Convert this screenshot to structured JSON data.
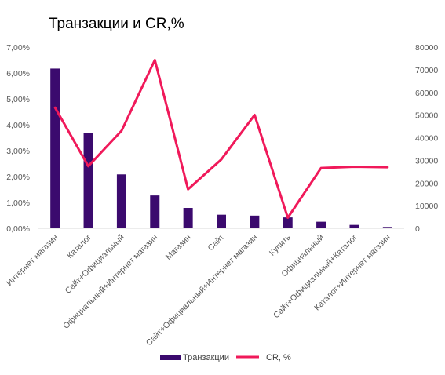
{
  "chart_data": {
    "type": "bar+line",
    "title": "Транзакции и CR,%",
    "categories": [
      "Интернет магазин",
      "Каталог",
      "Сайт+Официальный",
      "Официальный+Интернет магазин",
      "Магазин",
      "Сайт",
      "Сайт+Официальный+Интернет магазин",
      "Купить",
      "Официальный",
      "Сайт+Официальный+Каталог",
      "Каталог+Интернет магазин"
    ],
    "series": [
      {
        "name": "Транзакции",
        "type": "bar",
        "axis": "right",
        "color": "#3b0a6e",
        "values": [
          70500,
          42200,
          23800,
          14500,
          9000,
          6000,
          5600,
          4800,
          2900,
          1500,
          600
        ]
      },
      {
        "name": "CR, %",
        "type": "line",
        "axis": "left",
        "color": "#f0195a",
        "values": [
          0.0466,
          0.024,
          0.0377,
          0.065,
          0.0151,
          0.0266,
          0.0438,
          0.0041,
          0.0233,
          0.0238,
          0.0236
        ]
      }
    ],
    "left_axis": {
      "min": 0,
      "max": 0.07,
      "ticks": [
        "0,00%",
        "1,00%",
        "2,00%",
        "3,00%",
        "4,00%",
        "5,00%",
        "6,00%",
        "7,00%"
      ]
    },
    "right_axis": {
      "min": 0,
      "max": 80000,
      "ticks": [
        "0",
        "10000",
        "20000",
        "30000",
        "40000",
        "50000",
        "60000",
        "70000",
        "80000"
      ]
    },
    "grid": false,
    "legend_position": "bottom"
  }
}
